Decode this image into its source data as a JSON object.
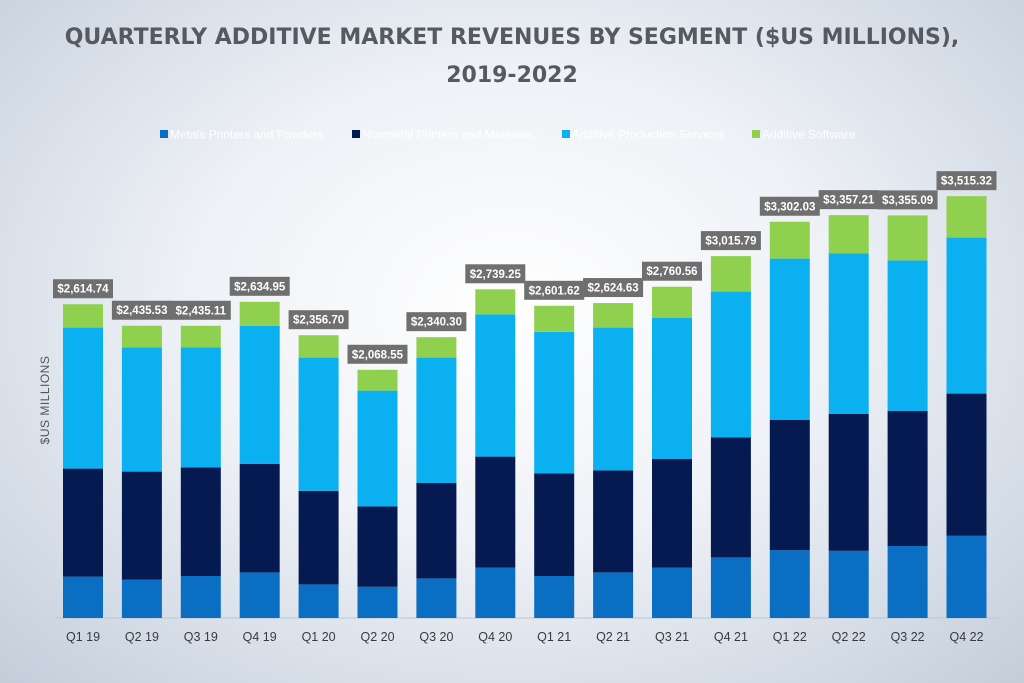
{
  "chart_data": {
    "type": "bar",
    "stacked": true,
    "title": [
      "QUARTERLY ADDITIVE MARKET REVENUES BY SEGMENT ($US MILLIONS),",
      "2019-2022"
    ],
    "ylabel": "$US MILLIONS",
    "xlabel": "",
    "ylim": [
      0,
      4000
    ],
    "grid": false,
    "legend_position": "top",
    "categories": [
      "Q1 19",
      "Q2 19",
      "Q3 19",
      "Q4 19",
      "Q1 20",
      "Q2 20",
      "Q3 20",
      "Q4 20",
      "Q1 21",
      "Q2 21",
      "Q3 21",
      "Q4 21",
      "Q1 22",
      "Q2 22",
      "Q3 22",
      "Q4 22"
    ],
    "totals": [
      "$2,614.74",
      "$2,435.53",
      "$2,435.11",
      "$2,634.95",
      "$2,356.70",
      "$2,068.55",
      "$2,340.30",
      "$2,739.25",
      "$2,601.62",
      "$2,624.63",
      "$2,760.56",
      "$3,015.79",
      "$3,302.03",
      "$3,357.21",
      "$3,355.09",
      "$3,515.32"
    ],
    "series": [
      {
        "name": "Metals Printers and Powders",
        "color": "#0a6fc2",
        "values": [
          345,
          320,
          350,
          380,
          280,
          260,
          330,
          420,
          350,
          380,
          420,
          505,
          565,
          560,
          600,
          685
        ]
      },
      {
        "name": "Nonmetal Printers and Materials",
        "color": "#061a52",
        "values": [
          900,
          900,
          905,
          905,
          780,
          670,
          795,
          925,
          855,
          850,
          905,
          1000,
          1085,
          1140,
          1125,
          1185
        ]
      },
      {
        "name": "Additive Production Services",
        "color": "#0ab0ef",
        "values": [
          1175,
          1035,
          1000,
          1150,
          1110,
          965,
          1045,
          1185,
          1180,
          1190,
          1175,
          1215,
          1345,
          1340,
          1255,
          1300
        ]
      },
      {
        "name": "Additive Software",
        "color": "#8fd14f",
        "values": [
          194.74,
          180.53,
          180.11,
          199.95,
          186.7,
          173.55,
          170.3,
          209.25,
          216.62,
          204.63,
          260.56,
          295.79,
          307.03,
          317.21,
          375.09,
          345.32
        ]
      }
    ]
  }
}
